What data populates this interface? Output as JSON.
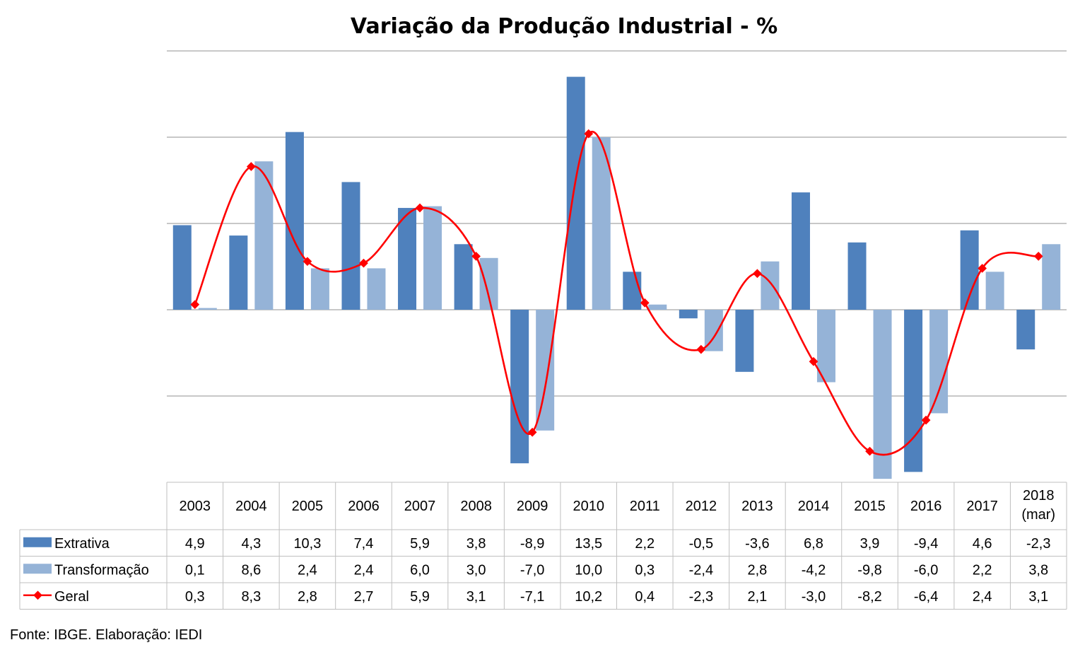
{
  "chart_data": {
    "type": "bar",
    "title": "Variação da Produção Industrial - %",
    "categories": [
      "2003",
      "2004",
      "2005",
      "2006",
      "2007",
      "2008",
      "2009",
      "2010",
      "2011",
      "2012",
      "2013",
      "2014",
      "2015",
      "2016",
      "2017",
      "2018 (mar)"
    ],
    "category_lines": [
      [
        "2003"
      ],
      [
        "2004"
      ],
      [
        "2005"
      ],
      [
        "2006"
      ],
      [
        "2007"
      ],
      [
        "2008"
      ],
      [
        "2009"
      ],
      [
        "2010"
      ],
      [
        "2011"
      ],
      [
        "2012"
      ],
      [
        "2013"
      ],
      [
        "2014"
      ],
      [
        "2015"
      ],
      [
        "2016"
      ],
      [
        "2017"
      ],
      [
        "2018",
        "(mar)"
      ]
    ],
    "ylim": [
      -10,
      15
    ],
    "grid": true,
    "series": [
      {
        "name": "Extrativa",
        "type": "bar",
        "color": "#4f81bd",
        "values": [
          4.9,
          4.3,
          10.3,
          7.4,
          5.9,
          3.8,
          -8.9,
          13.5,
          2.2,
          -0.5,
          -3.6,
          6.8,
          3.9,
          -9.4,
          4.6,
          -2.3
        ],
        "labels": [
          "4,9",
          "4,3",
          "10,3",
          "7,4",
          "5,9",
          "3,8",
          "-8,9",
          "13,5",
          "2,2",
          "-0,5",
          "-3,6",
          "6,8",
          "3,9",
          "-9,4",
          "4,6",
          "-2,3"
        ]
      },
      {
        "name": "Transformação",
        "type": "bar",
        "color": "#95b3d7",
        "values": [
          0.1,
          8.6,
          2.4,
          2.4,
          6.0,
          3.0,
          -7.0,
          10.0,
          0.3,
          -2.4,
          2.8,
          -4.2,
          -9.8,
          -6.0,
          2.2,
          3.8
        ],
        "labels": [
          "0,1",
          "8,6",
          "2,4",
          "2,4",
          "6,0",
          "3,0",
          "-7,0",
          "10,0",
          "0,3",
          "-2,4",
          "2,8",
          "-4,2",
          "-9,8",
          "-6,0",
          "2,2",
          "3,8"
        ]
      },
      {
        "name": "Geral",
        "type": "line",
        "color": "#ff0000",
        "values": [
          0.3,
          8.3,
          2.8,
          2.7,
          5.9,
          3.1,
          -7.1,
          10.2,
          0.4,
          -2.3,
          2.1,
          -3.0,
          -8.2,
          -6.4,
          2.4,
          3.1
        ],
        "labels": [
          "0,3",
          "8,3",
          "2,8",
          "2,7",
          "5,9",
          "3,1",
          "-7,1",
          "10,2",
          "0,4",
          "-2,3",
          "2,1",
          "-3,0",
          "-8,2",
          "-6,4",
          "2,4",
          "3,1"
        ]
      }
    ]
  },
  "source": "Fonte: IBGE. Elaboração: IEDI"
}
